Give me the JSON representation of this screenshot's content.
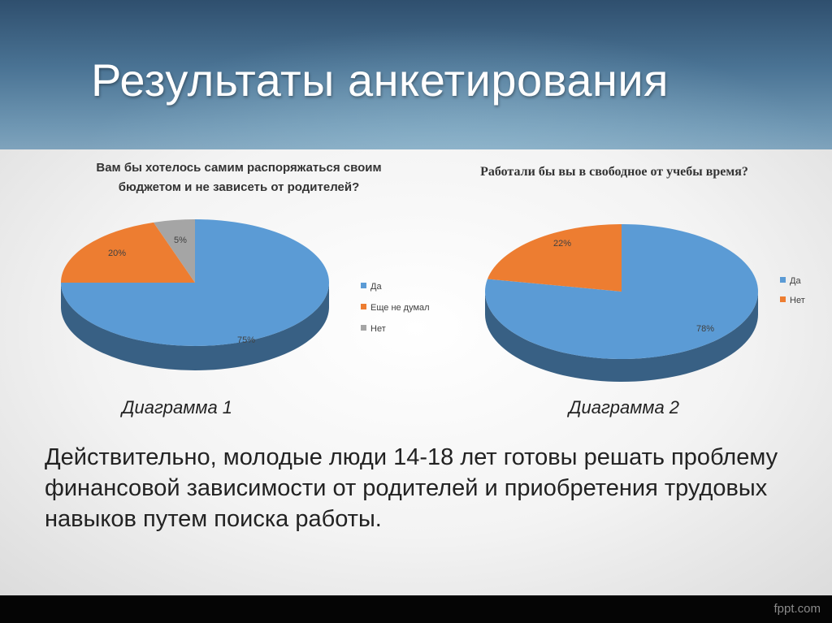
{
  "slide": {
    "title": "Результаты анкетирования",
    "footer_brand": "fppt.com",
    "colors": {
      "header": "#4a7394",
      "yes": "#5b9bd5",
      "not_thought": "#ed7d31",
      "no": "#a5a5a5"
    }
  },
  "charts": [
    {
      "caption": "Диаграмма 1"
    },
    {
      "caption": "Диаграмма 2"
    }
  ],
  "conclusion": "Действительно, молодые люди 14-18 лет готовы решать проблему финансовой зависимости от родителей и приобретения трудовых навыков путем поиска работы.",
  "chart_data": [
    {
      "type": "pie",
      "title": "Вам бы хотелось самим распоряжаться своим бюджетом и не зависеть от родителей?",
      "title_lines": [
        "Вам бы хотелось самим распоряжаться своим",
        "бюджетом и не зависеть от родителей?"
      ],
      "categories": [
        "Да",
        "Еще не думал",
        "Нет"
      ],
      "values": [
        75,
        20,
        5
      ],
      "labels": [
        "75%",
        "20%",
        "5%"
      ],
      "colors": [
        "#5b9bd5",
        "#ed7d31",
        "#a5a5a5"
      ],
      "legend": "right"
    },
    {
      "type": "pie",
      "title": "Работали бы вы в свободное от учебы время?",
      "title_lines": [
        "Работали бы вы в свободное от учебы время?"
      ],
      "categories": [
        "Да",
        "Нет"
      ],
      "values": [
        78,
        22
      ],
      "labels": [
        "78%",
        "22%"
      ],
      "colors": [
        "#5b9bd5",
        "#ed7d31"
      ],
      "legend": "right"
    }
  ]
}
